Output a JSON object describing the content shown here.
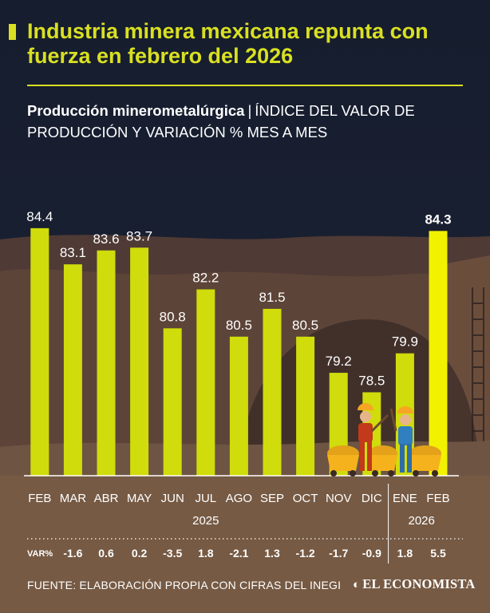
{
  "header": {
    "title": "Industria minera mexicana repunta con fuerza en febrero del 2026",
    "subtitle_strong": "Producción minerometalúrgica",
    "subtitle_sep": "|",
    "subtitle_rest": "ÍNDICE DEL VALOR DE PRODUCCIÓN Y VARIACIÓN % MES A MES"
  },
  "chart_data": {
    "type": "bar",
    "categories": [
      "FEB",
      "MAR",
      "ABR",
      "MAY",
      "JUN",
      "JUL",
      "AGO",
      "SEP",
      "OCT",
      "NOV",
      "DIC",
      "ENE",
      "FEB"
    ],
    "values": [
      84.4,
      83.1,
      83.6,
      83.7,
      80.8,
      82.2,
      80.5,
      81.5,
      80.5,
      79.2,
      78.5,
      79.9,
      84.3
    ],
    "value_labels": [
      "84.4",
      "83.1",
      "83.6",
      "83.7",
      "80.8",
      "82.2",
      "80.5",
      "81.5",
      "80.5",
      "79.2",
      "78.5",
      "79.9",
      "84.3"
    ],
    "var_label": "VAR%",
    "variation": [
      "",
      "-1.6",
      "0.6",
      "0.2",
      "-3.5",
      "1.8",
      "-2.1",
      "1.3",
      "-1.2",
      "-1.7",
      "-0.9",
      "1.8",
      "5.5"
    ],
    "year_groups": [
      {
        "label": "2025",
        "first": 0,
        "last": 10
      },
      {
        "label": "2026",
        "first": 11,
        "last": 12
      }
    ],
    "highlight_index": 12,
    "ylim": [
      75.5,
      85.2
    ],
    "colors": {
      "bar": "#d0dc0b",
      "highlight": "#f2f200",
      "label": "#ffffff"
    }
  },
  "footer": {
    "source": "FUENTE: ELABORACIÓN PROPIA CON CIFRAS DEL INEGI",
    "brand": "EL ECONOMISTA"
  }
}
